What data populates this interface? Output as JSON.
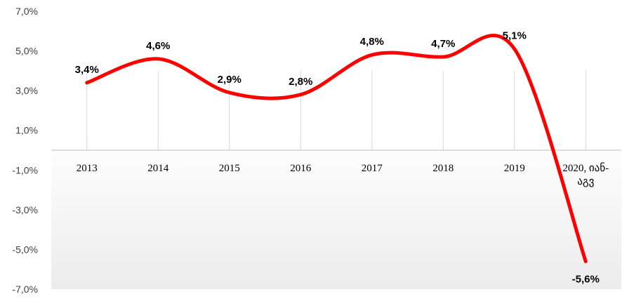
{
  "chart_data": {
    "type": "line",
    "title": "",
    "xlabel": "",
    "ylabel": "",
    "categories": [
      "2013",
      "2014",
      "2015",
      "2016",
      "2017",
      "2018",
      "2019",
      "2020, იან-აგვ"
    ],
    "category_lines": [
      [
        "2013"
      ],
      [
        "2014"
      ],
      [
        "2015"
      ],
      [
        "2016"
      ],
      [
        "2017"
      ],
      [
        "2018"
      ],
      [
        "2019"
      ],
      [
        "2020, იან-",
        "აგვ"
      ]
    ],
    "series": [
      {
        "values": [
          3.4,
          4.6,
          2.9,
          2.8,
          4.8,
          4.7,
          5.1,
          -5.6
        ]
      }
    ],
    "data_labels": [
      "3,4%",
      "4,6%",
      "2,9%",
      "2,8%",
      "4,8%",
      "4,7%",
      "5,1%",
      "-5,6%"
    ],
    "ylim": [
      -7,
      7
    ],
    "yticks": [
      {
        "value": 7,
        "label": "7,0%"
      },
      {
        "value": 5,
        "label": "5,0%"
      },
      {
        "value": 3,
        "label": "3,0%"
      },
      {
        "value": 1,
        "label": "1,0%"
      },
      {
        "value": -1,
        "label": "-1,0%"
      },
      {
        "value": -3,
        "label": "-3,0%"
      },
      {
        "value": -5,
        "label": "-5,0%"
      },
      {
        "value": -7,
        "label": "-7,0%"
      }
    ],
    "line_color": "#ff0000",
    "gridlines": "vertical",
    "grid_color": "#d9d9d9",
    "plot_background": "white-to-light-gray gradient",
    "legend": "none"
  }
}
